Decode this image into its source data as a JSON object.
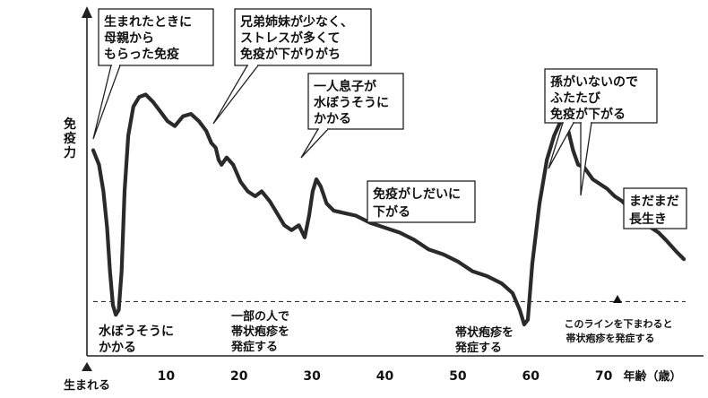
{
  "chart_data": {
    "type": "line",
    "ylabel": "免疫力",
    "xlabel": "年齢（歳）",
    "x_start_label": "生まれる",
    "xlim": [
      0,
      80
    ],
    "ylim": [
      0,
      100
    ],
    "x_ticks": [
      10,
      20,
      30,
      40,
      50,
      60,
      70
    ],
    "threshold": {
      "value": 8,
      "style": "dashed",
      "label": [
        "このラインを下まわると",
        "帯状疱疹を発症する"
      ]
    },
    "series": [
      {
        "points": [
          [
            0,
            72
          ],
          [
            0.8,
            66
          ],
          [
            1.4,
            55
          ],
          [
            1.9,
            40
          ],
          [
            2.3,
            22
          ],
          [
            2.7,
            8
          ],
          [
            3.1,
            4
          ],
          [
            3.5,
            6
          ],
          [
            3.9,
            22
          ],
          [
            4.3,
            55
          ],
          [
            4.8,
            78
          ],
          [
            5.5,
            90
          ],
          [
            6.3,
            94
          ],
          [
            7.2,
            95
          ],
          [
            8.2,
            92
          ],
          [
            9.2,
            88
          ],
          [
            10.2,
            84
          ],
          [
            11.2,
            82
          ],
          [
            12.3,
            86
          ],
          [
            13.4,
            87
          ],
          [
            14.5,
            84
          ],
          [
            15.5,
            80
          ],
          [
            16.2,
            75
          ],
          [
            16.8,
            73
          ],
          [
            17.2,
            68
          ],
          [
            17.6,
            66
          ],
          [
            18.3,
            69
          ],
          [
            19.2,
            66
          ],
          [
            20.2,
            59
          ],
          [
            21.2,
            55
          ],
          [
            22.2,
            53
          ],
          [
            23.1,
            55
          ],
          [
            24.2,
            51
          ],
          [
            25.2,
            46
          ],
          [
            26.2,
            41
          ],
          [
            27.2,
            39
          ],
          [
            28.2,
            41
          ],
          [
            29,
            36
          ],
          [
            29.6,
            45
          ],
          [
            30.1,
            55
          ],
          [
            30.6,
            60
          ],
          [
            31.2,
            57
          ],
          [
            32,
            50
          ],
          [
            33,
            47
          ],
          [
            34.5,
            46
          ],
          [
            36,
            45
          ],
          [
            38,
            42
          ],
          [
            40,
            40
          ],
          [
            42,
            38
          ],
          [
            44,
            35
          ],
          [
            46,
            31
          ],
          [
            48,
            29
          ],
          [
            50,
            26
          ],
          [
            52,
            22
          ],
          [
            54,
            20
          ],
          [
            56,
            17
          ],
          [
            57.5,
            13
          ],
          [
            58.5,
            6
          ],
          [
            59.1,
            0
          ],
          [
            59.6,
            2
          ],
          [
            60.2,
            25
          ],
          [
            61.2,
            50
          ],
          [
            62.2,
            68
          ],
          [
            63.2,
            78
          ],
          [
            64.1,
            84
          ],
          [
            65,
            82
          ],
          [
            65.8,
            72
          ],
          [
            66.5,
            66
          ],
          [
            67.3,
            65
          ],
          [
            68.5,
            60
          ],
          [
            69.5,
            58
          ],
          [
            70.5,
            56
          ],
          [
            71.5,
            53
          ],
          [
            72.5,
            51
          ],
          [
            73.5,
            48
          ],
          [
            74.5,
            46
          ],
          [
            75.5,
            44
          ],
          [
            76.5,
            40
          ],
          [
            77.5,
            38
          ],
          [
            78.5,
            35
          ],
          [
            80,
            30
          ],
          [
            81,
            27
          ]
        ]
      }
    ],
    "annotations": [
      {
        "lines": [
          "生まれたときに",
          "母親から",
          "もらった免疫"
        ],
        "boxed": true
      },
      {
        "lines": [
          "兄弟姉妹が少なく、",
          "ストレスが多くて",
          "免疫が下がりがち"
        ],
        "boxed": true
      },
      {
        "lines": [
          "一人息子が",
          "水ぼうそうに",
          "かかる"
        ],
        "boxed": true
      },
      {
        "lines": [
          "免疫がしだいに",
          "下がる"
        ],
        "boxed": true
      },
      {
        "lines": [
          "孫がいないので",
          "ふたたび",
          "免疫が下がる"
        ],
        "boxed": true
      },
      {
        "lines": [
          "まだまだ",
          "長生き"
        ],
        "boxed": true
      },
      {
        "lines": [
          "水ぼうそうに",
          "かかる"
        ],
        "boxed": false
      },
      {
        "lines": [
          "一部の人で",
          "帯状疱疹を",
          "発症する"
        ],
        "boxed": false
      },
      {
        "lines": [
          "帯状疱疹を",
          "発症する"
        ],
        "boxed": false
      }
    ],
    "grid": false,
    "colors": {
      "line": "#2a2a2a",
      "axis": "#222222",
      "threshold": "#333333"
    }
  }
}
